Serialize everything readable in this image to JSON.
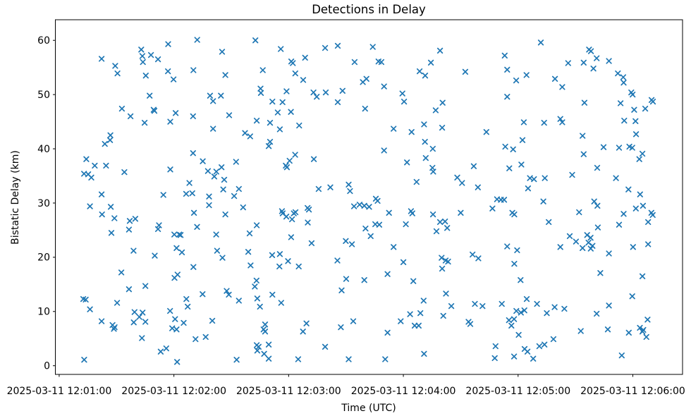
{
  "chart_data": {
    "type": "scatter",
    "marker": "x",
    "marker_color": "#1f77b4",
    "title": "Detections in Delay",
    "xlabel": "Time (UTC)",
    "ylabel": "Bistatic Delay (km)",
    "x_unit": "seconds after 2025-03-11 12:01:00 UTC",
    "xlim": [
      -2,
      326
    ],
    "ylim": [
      -1.6,
      63.8
    ],
    "grid": false,
    "legend": "none",
    "x_ticks_seconds": [
      0,
      60,
      120,
      180,
      240,
      300
    ],
    "x_tick_labels": [
      "2025-03-11 12:01:00",
      "2025-03-11 12:02:00",
      "2025-03-11 12:03:00",
      "2025-03-11 12:04:00",
      "2025-03-11 12:05:00",
      "2025-03-11 12:06:00"
    ],
    "y_ticks": [
      0,
      10,
      20,
      30,
      40,
      50,
      60
    ],
    "y_tick_labels": [
      "0",
      "10",
      "20",
      "30",
      "40",
      "50",
      "60"
    ],
    "points": [
      [
        72.2,
        60.1
      ],
      [
        57,
        59.3
      ],
      [
        42.9,
        58.3
      ],
      [
        43.5,
        57.1
      ],
      [
        43.8,
        56
      ],
      [
        48,
        57.3
      ],
      [
        51.7,
        56.5
      ],
      [
        22.2,
        56.6
      ],
      [
        29.3,
        55.3
      ],
      [
        30.5,
        53.9
      ],
      [
        56.9,
        54.3
      ],
      [
        59.8,
        52.8
      ],
      [
        70.2,
        54.5
      ],
      [
        45.3,
        53.5
      ],
      [
        47.3,
        49.8
      ],
      [
        78.9,
        49.8
      ],
      [
        32.8,
        47.4
      ],
      [
        49.4,
        47.2
      ],
      [
        49.8,
        47
      ],
      [
        37.3,
        46
      ],
      [
        60.9,
        46.6
      ],
      [
        70,
        46
      ],
      [
        44.7,
        44.8
      ],
      [
        58.1,
        45
      ],
      [
        26.8,
        42.5
      ],
      [
        102.6,
        60
      ],
      [
        85.2,
        57.9
      ],
      [
        115.9,
        58.4
      ],
      [
        139.1,
        58.6
      ],
      [
        145.7,
        59
      ],
      [
        121.4,
        56.1
      ],
      [
        122.2,
        55.8
      ],
      [
        128.6,
        56.8
      ],
      [
        154.5,
        56
      ],
      [
        86.9,
        53.6
      ],
      [
        106.5,
        54.5
      ],
      [
        123.5,
        53.9
      ],
      [
        127.6,
        52.7
      ],
      [
        158.8,
        52.3
      ],
      [
        160.7,
        52.9
      ],
      [
        105.3,
        51.1
      ],
      [
        105.5,
        50.3
      ],
      [
        118.9,
        50.6
      ],
      [
        133,
        50.4
      ],
      [
        134.7,
        49.6
      ],
      [
        139.4,
        50.4
      ],
      [
        148.2,
        50.7
      ],
      [
        145.7,
        48.6
      ],
      [
        111.5,
        48.7
      ],
      [
        116.8,
        48.6
      ],
      [
        114.3,
        46.7
      ],
      [
        121.2,
        46.8
      ],
      [
        88.9,
        46.2
      ],
      [
        84.6,
        49.8
      ],
      [
        80.5,
        48.8
      ],
      [
        103.3,
        45.2
      ],
      [
        110.3,
        44.8
      ],
      [
        125.5,
        44.3
      ],
      [
        115.4,
        43.6
      ],
      [
        97.2,
        42.9
      ],
      [
        99.9,
        42.3
      ],
      [
        80.5,
        43.7
      ],
      [
        160,
        47.4
      ],
      [
        164,
        58.8
      ],
      [
        199.2,
        58.1
      ],
      [
        167,
        56.1
      ],
      [
        168.5,
        56
      ],
      [
        194.4,
        55.9
      ],
      [
        188.5,
        54.3
      ],
      [
        191.4,
        53.5
      ],
      [
        212.4,
        54.2
      ],
      [
        233,
        57.2
      ],
      [
        234.3,
        54.6
      ],
      [
        239,
        52.6
      ],
      [
        169.9,
        51.5
      ],
      [
        179.5,
        50.2
      ],
      [
        180.4,
        48.7
      ],
      [
        200.5,
        48.5
      ],
      [
        196.9,
        47.1
      ],
      [
        234.3,
        49.6
      ],
      [
        243,
        44.9
      ],
      [
        190.8,
        44.5
      ],
      [
        174.9,
        43.7
      ],
      [
        184.3,
        43.1
      ],
      [
        200.3,
        43.9
      ],
      [
        223.4,
        43.1
      ],
      [
        251.9,
        59.6
      ],
      [
        277.1,
        58.3
      ],
      [
        278.1,
        58
      ],
      [
        281.1,
        56.7
      ],
      [
        287.5,
        56.2
      ],
      [
        274.3,
        55.9
      ],
      [
        266.2,
        55.8
      ],
      [
        279.4,
        54.8
      ],
      [
        244.4,
        53.6
      ],
      [
        292.2,
        53.9
      ],
      [
        295,
        53.2
      ],
      [
        295.2,
        52.2
      ],
      [
        259.3,
        52.9
      ],
      [
        263.1,
        51.4
      ],
      [
        299.2,
        50.4
      ],
      [
        299.9,
        50
      ],
      [
        309.8,
        49
      ],
      [
        310.5,
        48.7
      ],
      [
        293.6,
        48.4
      ],
      [
        300.7,
        47.2
      ],
      [
        306.5,
        47.4
      ],
      [
        274.7,
        48.5
      ],
      [
        295.5,
        45.2
      ],
      [
        301.4,
        45.1
      ],
      [
        253.6,
        44.8
      ],
      [
        262.1,
        45.5
      ],
      [
        263.1,
        44.9
      ],
      [
        301.7,
        42.7
      ],
      [
        273.7,
        42.4
      ],
      [
        23.9,
        40.9
      ],
      [
        26.6,
        41.6
      ],
      [
        14.2,
        38.1
      ],
      [
        18.6,
        36.9
      ],
      [
        24.5,
        36.9
      ],
      [
        13,
        35.4
      ],
      [
        15.2,
        35.3
      ],
      [
        16.8,
        34.7
      ],
      [
        34.1,
        35.7
      ],
      [
        58.1,
        36.2
      ],
      [
        70,
        39.2
      ],
      [
        75.1,
        37.7
      ],
      [
        77.8,
        35.9
      ],
      [
        68.1,
        33.7
      ],
      [
        22.2,
        31.6
      ],
      [
        54.5,
        31.5
      ],
      [
        66.4,
        31.7
      ],
      [
        69.6,
        31.8
      ],
      [
        78.4,
        31.2
      ],
      [
        78.4,
        29.6
      ],
      [
        16.1,
        29.4
      ],
      [
        27,
        29.3
      ],
      [
        22.4,
        27.9
      ],
      [
        28.9,
        27.2
      ],
      [
        70.5,
        28.2
      ],
      [
        39.8,
        27.1
      ],
      [
        36.9,
        26.7
      ],
      [
        52.2,
        25.9
      ],
      [
        51.7,
        25.2
      ],
      [
        72.1,
        25.6
      ],
      [
        36.5,
        25.1
      ],
      [
        27.3,
        24.5
      ],
      [
        60.2,
        24.2
      ],
      [
        62.8,
        24.2
      ],
      [
        63.5,
        24.1
      ],
      [
        38.9,
        21.2
      ],
      [
        50,
        20.3
      ],
      [
        61.4,
        21.7
      ],
      [
        64.2,
        20.9
      ],
      [
        110.3,
        41.3
      ],
      [
        109.6,
        40.5
      ],
      [
        123.4,
        38.9
      ],
      [
        120.5,
        37.8
      ],
      [
        118.5,
        36.9
      ],
      [
        119.1,
        36.6
      ],
      [
        133.2,
        38.1
      ],
      [
        92.5,
        37.6
      ],
      [
        84.9,
        36.6
      ],
      [
        82.2,
        35.8
      ],
      [
        81.1,
        34.9
      ],
      [
        86.3,
        34.3
      ],
      [
        85.8,
        32.5
      ],
      [
        94,
        32.6
      ],
      [
        91.5,
        31.3
      ],
      [
        135.7,
        32.6
      ],
      [
        141.8,
        32.9
      ],
      [
        151.4,
        33.4
      ],
      [
        152.1,
        32.2
      ],
      [
        96.2,
        29.2
      ],
      [
        86.9,
        27.9
      ],
      [
        116.5,
        28.5
      ],
      [
        116.9,
        28.1
      ],
      [
        118.8,
        27.5
      ],
      [
        122.7,
        28.1
      ],
      [
        123.6,
        28.3
      ],
      [
        121.8,
        27
      ],
      [
        129.9,
        29.1
      ],
      [
        130.6,
        28.8
      ],
      [
        130,
        26.4
      ],
      [
        154.2,
        29.4
      ],
      [
        157.1,
        29.7
      ],
      [
        159.6,
        29.5
      ],
      [
        162.1,
        29.3
      ],
      [
        103.3,
        25.9
      ],
      [
        99.6,
        24.4
      ],
      [
        82.1,
        24.2
      ],
      [
        121.3,
        23.7
      ],
      [
        132,
        22.6
      ],
      [
        149.9,
        23
      ],
      [
        153.1,
        22.4
      ],
      [
        160.2,
        25.3
      ],
      [
        82.6,
        21.2
      ],
      [
        98.9,
        21
      ],
      [
        111.4,
        20.4
      ],
      [
        115.4,
        20.6
      ],
      [
        191.3,
        41.3
      ],
      [
        195.4,
        40
      ],
      [
        169.9,
        39.7
      ],
      [
        242.3,
        41.6
      ],
      [
        233.3,
        40.4
      ],
      [
        237.4,
        39.9
      ],
      [
        181.9,
        37.5
      ],
      [
        191.7,
        38.3
      ],
      [
        195.2,
        36.5
      ],
      [
        195.6,
        35.8
      ],
      [
        216.8,
        36.8
      ],
      [
        235.4,
        36.4
      ],
      [
        241.7,
        37.1
      ],
      [
        186.9,
        33.9
      ],
      [
        208.2,
        34.7
      ],
      [
        210.7,
        33.7
      ],
      [
        219,
        32.9
      ],
      [
        165.6,
        30.8
      ],
      [
        166.5,
        30.4
      ],
      [
        229,
        30.7
      ],
      [
        231,
        30.6
      ],
      [
        232.7,
        30.6
      ],
      [
        226.6,
        29
      ],
      [
        237,
        28.2
      ],
      [
        238,
        27.9
      ],
      [
        172.5,
        28.2
      ],
      [
        184,
        28.5
      ],
      [
        184.7,
        28.1
      ],
      [
        195.5,
        27.9
      ],
      [
        210,
        28.2
      ],
      [
        165.3,
        26.1
      ],
      [
        167.4,
        26
      ],
      [
        181.3,
        26.1
      ],
      [
        199.2,
        26.5
      ],
      [
        201.8,
        26.6
      ],
      [
        202.9,
        25.4
      ],
      [
        197.3,
        24.8
      ],
      [
        162.9,
        23.9
      ],
      [
        174.9,
        21.9
      ],
      [
        234.3,
        22
      ],
      [
        239.5,
        21.3
      ],
      [
        284.7,
        40.3
      ],
      [
        292.8,
        40.2
      ],
      [
        298.2,
        40.4
      ],
      [
        299.7,
        40.2
      ],
      [
        305,
        39.1
      ],
      [
        303.4,
        38.1
      ],
      [
        274.3,
        39
      ],
      [
        281.4,
        36.5
      ],
      [
        268.3,
        35.2
      ],
      [
        246.2,
        34.6
      ],
      [
        248.3,
        34.4
      ],
      [
        245.2,
        32.7
      ],
      [
        254,
        34.6
      ],
      [
        291.2,
        34.6
      ],
      [
        297.7,
        32.5
      ],
      [
        303.8,
        31.6
      ],
      [
        253.2,
        30.3
      ],
      [
        279.8,
        30.3
      ],
      [
        281.5,
        29.5
      ],
      [
        271.9,
        28.3
      ],
      [
        301.6,
        29
      ],
      [
        305.3,
        29.5
      ],
      [
        309.7,
        28.2
      ],
      [
        310.4,
        27.8
      ],
      [
        295.2,
        28
      ],
      [
        308,
        26.5
      ],
      [
        256,
        26.5
      ],
      [
        292.8,
        26
      ],
      [
        281.7,
        25.5
      ],
      [
        276.1,
        24.1
      ],
      [
        277.9,
        23.6
      ],
      [
        276.8,
        22.7
      ],
      [
        278.9,
        22.1
      ],
      [
        278,
        21.6
      ],
      [
        267,
        23.9
      ],
      [
        270.3,
        22.9
      ],
      [
        262.1,
        21.9
      ],
      [
        273.7,
        21.7
      ],
      [
        287.5,
        20.7
      ],
      [
        300.1,
        21.9
      ],
      [
        308,
        22.4
      ],
      [
        32.5,
        17.2
      ],
      [
        70.2,
        18.2
      ],
      [
        60.3,
        16.2
      ],
      [
        61.9,
        16.8
      ],
      [
        36.5,
        14.1
      ],
      [
        45.1,
        14.7
      ],
      [
        12.6,
        12.3
      ],
      [
        13.9,
        12.2
      ],
      [
        16.1,
        10.4
      ],
      [
        75,
        13.2
      ],
      [
        66.5,
        12.3
      ],
      [
        67.2,
        10.9
      ],
      [
        30.3,
        11.6
      ],
      [
        22.2,
        8.2
      ],
      [
        39.4,
        9.9
      ],
      [
        43.6,
        9.8
      ],
      [
        41.9,
        9
      ],
      [
        39,
        8
      ],
      [
        45.1,
        8.1
      ],
      [
        27.9,
        7.5
      ],
      [
        29,
        7.1
      ],
      [
        28.6,
        6.8
      ],
      [
        58,
        10.1
      ],
      [
        60.6,
        8.6
      ],
      [
        65.1,
        7.9
      ],
      [
        59.1,
        6.9
      ],
      [
        61.4,
        6.7
      ],
      [
        43.3,
        5.1
      ],
      [
        71.3,
        4.9
      ],
      [
        76.6,
        5.3
      ],
      [
        53.1,
        2.6
      ],
      [
        56,
        3.2
      ],
      [
        13.1,
        1.1
      ],
      [
        61.7,
        0.7
      ],
      [
        80.1,
        8.3
      ],
      [
        85.4,
        19.9
      ],
      [
        100.1,
        18.5
      ],
      [
        115.2,
        18.3
      ],
      [
        119.7,
        19.3
      ],
      [
        125.3,
        18.3
      ],
      [
        145.5,
        19.4
      ],
      [
        150.1,
        16
      ],
      [
        159.6,
        15.8
      ],
      [
        147.7,
        13.9
      ],
      [
        103.2,
        15.7
      ],
      [
        102.3,
        14.6
      ],
      [
        87.6,
        13.8
      ],
      [
        88.7,
        13.1
      ],
      [
        94,
        12
      ],
      [
        103.6,
        12.4
      ],
      [
        111.5,
        13.1
      ],
      [
        116.1,
        11.6
      ],
      [
        105,
        10.9
      ],
      [
        107.7,
        7.6
      ],
      [
        106.9,
        6.7
      ],
      [
        107.7,
        6.3
      ],
      [
        129.3,
        7.8
      ],
      [
        127.5,
        6.3
      ],
      [
        147.3,
        7.1
      ],
      [
        153.8,
        8.2
      ],
      [
        103.3,
        3.8
      ],
      [
        104.3,
        3.5
      ],
      [
        103.6,
        2.8
      ],
      [
        109.6,
        3.9
      ],
      [
        107.2,
        2.2
      ],
      [
        109.6,
        1.3
      ],
      [
        125,
        1.2
      ],
      [
        92.8,
        1.1
      ],
      [
        139.1,
        3.5
      ],
      [
        151.4,
        1.2
      ],
      [
        180,
        19.1
      ],
      [
        200,
        19.9
      ],
      [
        202.1,
        19.4
      ],
      [
        203.4,
        19.2
      ],
      [
        200.3,
        17.9
      ],
      [
        216.2,
        20.5
      ],
      [
        219.2,
        19.8
      ],
      [
        238,
        18.8
      ],
      [
        171.7,
        16.9
      ],
      [
        185.2,
        15.6
      ],
      [
        241.3,
        15.8
      ],
      [
        202.3,
        13.3
      ],
      [
        190.6,
        12
      ],
      [
        205.1,
        11
      ],
      [
        217.4,
        11.4
      ],
      [
        221.4,
        11
      ],
      [
        231.5,
        11.4
      ],
      [
        183.5,
        9.5
      ],
      [
        188.9,
        9.7
      ],
      [
        200.9,
        9.2
      ],
      [
        178.6,
        8.2
      ],
      [
        185.9,
        7.4
      ],
      [
        188,
        7.4
      ],
      [
        214.1,
        8.1
      ],
      [
        215,
        7.7
      ],
      [
        171.7,
        6.1
      ],
      [
        239.1,
        10.1
      ],
      [
        241.5,
        9.8
      ],
      [
        243.3,
        10.2
      ],
      [
        235.2,
        8.4
      ],
      [
        237.9,
        8.6
      ],
      [
        236.5,
        7.4
      ],
      [
        240.3,
        5.7
      ],
      [
        228.2,
        3.6
      ],
      [
        243.4,
        3.1
      ],
      [
        244.9,
        2.6
      ],
      [
        227.8,
        1.4
      ],
      [
        237.9,
        1.7
      ],
      [
        190.8,
        2.2
      ],
      [
        170.5,
        1.2
      ],
      [
        244.5,
        12.3
      ],
      [
        283,
        17.1
      ],
      [
        305,
        16.5
      ],
      [
        299.7,
        12.8
      ],
      [
        249.9,
        11.4
      ],
      [
        255,
        9.7
      ],
      [
        259.1,
        10.8
      ],
      [
        264.2,
        10.5
      ],
      [
        287.5,
        11.1
      ],
      [
        281.1,
        9.6
      ],
      [
        307.7,
        8.5
      ],
      [
        272.8,
        6.4
      ],
      [
        286.9,
        6.7
      ],
      [
        297.9,
        6.1
      ],
      [
        303.7,
        7
      ],
      [
        305.5,
        6.6
      ],
      [
        305,
        6.3
      ],
      [
        307.1,
        5.3
      ],
      [
        258.5,
        4.9
      ],
      [
        251.1,
        3.6
      ],
      [
        253.8,
        3.9
      ],
      [
        247.9,
        1.3
      ],
      [
        294.2,
        1.9
      ]
    ]
  }
}
